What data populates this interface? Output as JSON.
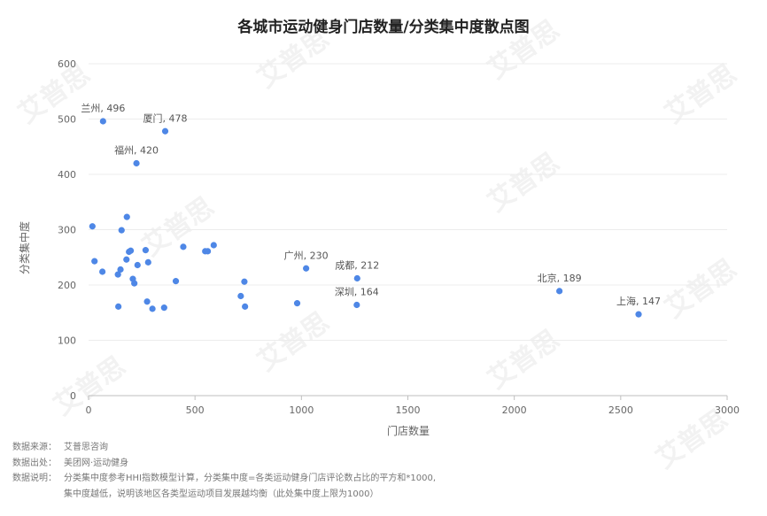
{
  "chart_data": {
    "type": "scatter",
    "title": "各城市运动健身门店数量/分类集中度散点图",
    "xlabel": "门店数量",
    "ylabel": "分类集中度",
    "xlim": [
      0,
      3000
    ],
    "ylim": [
      0,
      600
    ],
    "xticks": [
      "0",
      "500",
      "1000",
      "1500",
      "2000",
      "2500",
      "3000"
    ],
    "yticks": [
      "0",
      "100",
      "200",
      "300",
      "400",
      "500",
      "600"
    ],
    "grid": "horizontal",
    "points": [
      {
        "x": 68,
        "y": 496,
        "label": "兰州, 496"
      },
      {
        "x": 360,
        "y": 478,
        "label": "厦门, 478"
      },
      {
        "x": 225,
        "y": 420,
        "label": "福州, 420"
      },
      {
        "x": 1022,
        "y": 230,
        "label": "广州, 230"
      },
      {
        "x": 1262,
        "y": 212,
        "label": "成都, 212"
      },
      {
        "x": 1260,
        "y": 164,
        "label": "深圳, 164"
      },
      {
        "x": 2212,
        "y": 189,
        "label": "北京, 189"
      },
      {
        "x": 2584,
        "y": 147,
        "label": "上海, 147"
      },
      {
        "x": 18,
        "y": 306
      },
      {
        "x": 28,
        "y": 243
      },
      {
        "x": 65,
        "y": 224
      },
      {
        "x": 138,
        "y": 219
      },
      {
        "x": 140,
        "y": 161
      },
      {
        "x": 150,
        "y": 228
      },
      {
        "x": 155,
        "y": 299
      },
      {
        "x": 180,
        "y": 323
      },
      {
        "x": 178,
        "y": 246
      },
      {
        "x": 190,
        "y": 260
      },
      {
        "x": 198,
        "y": 262
      },
      {
        "x": 208,
        "y": 211
      },
      {
        "x": 215,
        "y": 203
      },
      {
        "x": 230,
        "y": 236
      },
      {
        "x": 268,
        "y": 263
      },
      {
        "x": 275,
        "y": 170
      },
      {
        "x": 280,
        "y": 241
      },
      {
        "x": 300,
        "y": 157
      },
      {
        "x": 355,
        "y": 159
      },
      {
        "x": 410,
        "y": 207
      },
      {
        "x": 445,
        "y": 269
      },
      {
        "x": 548,
        "y": 261
      },
      {
        "x": 560,
        "y": 261
      },
      {
        "x": 588,
        "y": 272
      },
      {
        "x": 715,
        "y": 180
      },
      {
        "x": 732,
        "y": 206
      },
      {
        "x": 735,
        "y": 161
      },
      {
        "x": 980,
        "y": 167
      }
    ],
    "colors": {
      "points": "#4e87e6"
    }
  },
  "watermark": "艾普思",
  "notes": [
    {
      "key": "数据来源：",
      "value": "艾普思咨询"
    },
    {
      "key": "数据出处：",
      "value": "美团网·运动健身"
    },
    {
      "key": "数据说明：",
      "value": "分类集中度参考HHI指数模型计算，分类集中度=各类运动健身门店评论数占比的平方和*1000,"
    }
  ],
  "notes_continuation": "集中度越低，说明该地区各类型运动项目发展越均衡（此处集中度上限为1000）"
}
